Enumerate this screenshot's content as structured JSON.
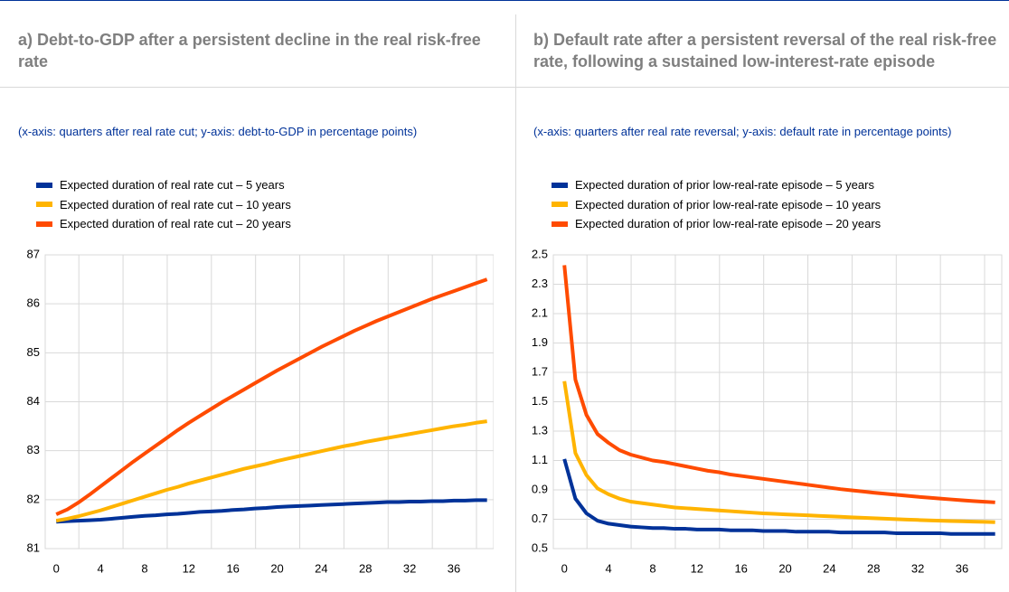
{
  "chart_data": [
    {
      "type": "line",
      "title": "a) Debt-to-GDP after a persistent decline in the real risk-free rate",
      "subtitle": "(x-axis: quarters after real rate cut; y-axis: debt-to-GDP in percentage points)",
      "x": [
        0,
        1,
        2,
        3,
        4,
        5,
        6,
        7,
        8,
        9,
        10,
        11,
        12,
        13,
        14,
        15,
        16,
        17,
        18,
        19,
        20,
        21,
        22,
        23,
        24,
        25,
        26,
        27,
        28,
        29,
        30,
        31,
        32,
        33,
        34,
        35,
        36,
        37,
        38,
        39
      ],
      "xlim": [
        -1,
        39.6
      ],
      "xticks": [
        0,
        4,
        8,
        12,
        16,
        20,
        24,
        28,
        32,
        36
      ],
      "ylim": [
        81,
        87
      ],
      "yticks": [
        81,
        82,
        83,
        84,
        85,
        86,
        87
      ],
      "grid": true,
      "series": [
        {
          "name": "Expected duration of real rate cut – 5 years",
          "color": "#003299",
          "values": [
            81.55,
            81.56,
            81.57,
            81.58,
            81.59,
            81.61,
            81.63,
            81.65,
            81.67,
            81.68,
            81.7,
            81.71,
            81.73,
            81.75,
            81.76,
            81.77,
            81.79,
            81.8,
            81.82,
            81.83,
            81.85,
            81.86,
            81.87,
            81.88,
            81.89,
            81.9,
            81.91,
            81.92,
            81.93,
            81.94,
            81.95,
            81.95,
            81.96,
            81.96,
            81.97,
            81.97,
            81.98,
            81.98,
            81.99,
            81.99
          ]
        },
        {
          "name": "Expected duration of real rate cut – 10 years",
          "color": "#ffb400",
          "values": [
            81.57,
            81.61,
            81.66,
            81.72,
            81.78,
            81.85,
            81.92,
            81.99,
            82.06,
            82.13,
            82.2,
            82.26,
            82.33,
            82.39,
            82.45,
            82.51,
            82.57,
            82.63,
            82.68,
            82.73,
            82.79,
            82.84,
            82.89,
            82.94,
            82.99,
            83.04,
            83.09,
            83.13,
            83.18,
            83.22,
            83.26,
            83.3,
            83.34,
            83.38,
            83.42,
            83.46,
            83.5,
            83.53,
            83.57,
            83.6
          ]
        },
        {
          "name": "Expected duration of real rate cut – 20 years",
          "color": "#ff4b00",
          "values": [
            81.7,
            81.8,
            81.94,
            82.1,
            82.27,
            82.44,
            82.61,
            82.78,
            82.94,
            83.1,
            83.26,
            83.42,
            83.57,
            83.71,
            83.85,
            83.99,
            84.12,
            84.25,
            84.38,
            84.51,
            84.64,
            84.76,
            84.88,
            85.0,
            85.12,
            85.23,
            85.34,
            85.45,
            85.55,
            85.65,
            85.74,
            85.83,
            85.92,
            86.01,
            86.1,
            86.18,
            86.26,
            86.34,
            86.42,
            86.5
          ]
        }
      ]
    },
    {
      "type": "line",
      "title": "b) Default rate after a persistent reversal of the real risk-free rate, following a sustained low-interest-rate episode",
      "subtitle": "(x-axis: quarters after real rate reversal; y-axis: default rate in percentage points)",
      "x": [
        0,
        1,
        2,
        3,
        4,
        5,
        6,
        7,
        8,
        9,
        10,
        11,
        12,
        13,
        14,
        15,
        16,
        17,
        18,
        19,
        20,
        21,
        22,
        23,
        24,
        25,
        26,
        27,
        28,
        29,
        30,
        31,
        32,
        33,
        34,
        35,
        36,
        37,
        38,
        39
      ],
      "xlim": [
        -1,
        39.6
      ],
      "xticks": [
        0,
        4,
        8,
        12,
        16,
        20,
        24,
        28,
        32,
        36
      ],
      "ylim": [
        0.5,
        2.5
      ],
      "yticks": [
        0.5,
        0.7,
        0.9,
        1.1,
        1.3,
        1.5,
        1.7,
        1.9,
        2.1,
        2.3,
        2.5
      ],
      "grid": true,
      "series": [
        {
          "name": "Expected duration of prior low-real-rate episode – 5 years",
          "color": "#003299",
          "values": [
            1.11,
            0.84,
            0.74,
            0.69,
            0.67,
            0.66,
            0.65,
            0.645,
            0.64,
            0.64,
            0.635,
            0.635,
            0.63,
            0.63,
            0.63,
            0.625,
            0.625,
            0.625,
            0.62,
            0.62,
            0.62,
            0.615,
            0.615,
            0.615,
            0.615,
            0.61,
            0.61,
            0.61,
            0.61,
            0.61,
            0.605,
            0.605,
            0.605,
            0.605,
            0.605,
            0.6,
            0.6,
            0.6,
            0.6,
            0.6
          ]
        },
        {
          "name": "Expected duration of prior low-real-rate episode – 10 years",
          "color": "#ffb400",
          "values": [
            1.64,
            1.15,
            1.0,
            0.91,
            0.87,
            0.84,
            0.82,
            0.81,
            0.8,
            0.79,
            0.78,
            0.775,
            0.77,
            0.765,
            0.76,
            0.755,
            0.75,
            0.745,
            0.74,
            0.737,
            0.733,
            0.73,
            0.727,
            0.723,
            0.72,
            0.717,
            0.713,
            0.71,
            0.707,
            0.704,
            0.701,
            0.698,
            0.695,
            0.692,
            0.69,
            0.688,
            0.686,
            0.684,
            0.682,
            0.68
          ]
        },
        {
          "name": "Expected duration of prior low-real-rate episode – 20 years",
          "color": "#ff4b00",
          "values": [
            2.43,
            1.65,
            1.41,
            1.28,
            1.22,
            1.17,
            1.14,
            1.12,
            1.1,
            1.09,
            1.075,
            1.06,
            1.045,
            1.03,
            1.02,
            1.005,
            0.995,
            0.985,
            0.975,
            0.965,
            0.955,
            0.945,
            0.935,
            0.925,
            0.915,
            0.905,
            0.897,
            0.889,
            0.881,
            0.874,
            0.867,
            0.86,
            0.853,
            0.847,
            0.841,
            0.835,
            0.829,
            0.824,
            0.819,
            0.815
          ]
        }
      ]
    }
  ]
}
